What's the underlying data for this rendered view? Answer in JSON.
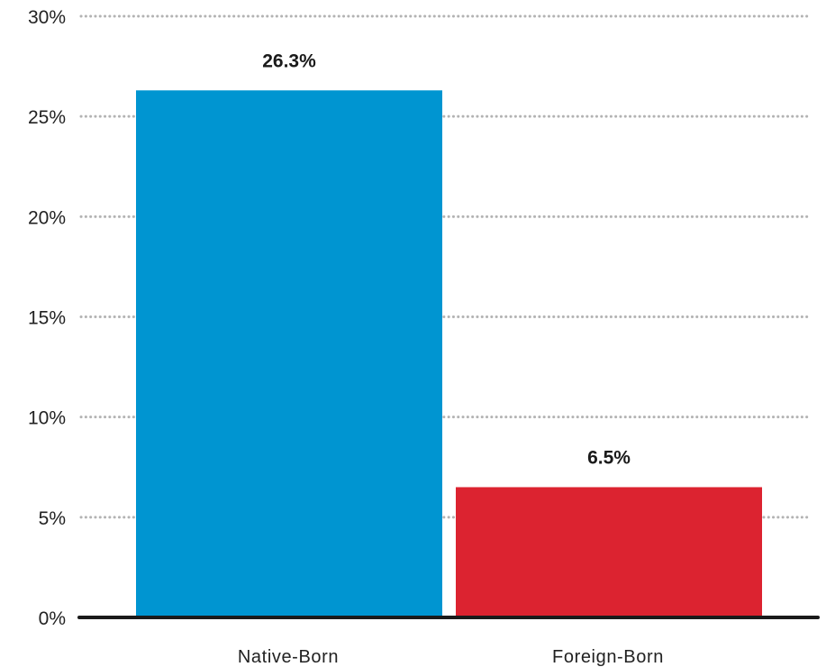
{
  "chart_data": {
    "type": "bar",
    "categories": [
      "Native-Born",
      "Foreign-Born"
    ],
    "values": [
      26.3,
      6.5
    ],
    "data_labels": [
      "26.3%",
      "6.5%"
    ],
    "colors": [
      "#0095d1",
      "#dc2330"
    ],
    "ylim": [
      0,
      30
    ],
    "yticks": [
      0,
      5,
      10,
      15,
      20,
      25,
      30
    ],
    "ytick_labels": [
      "0%",
      "5%",
      "10%",
      "15%",
      "20%",
      "25%",
      "30%"
    ],
    "grid": "dotted horizontal",
    "axis_color": "#1a1a1a",
    "grid_color": "#b3b3b3"
  }
}
